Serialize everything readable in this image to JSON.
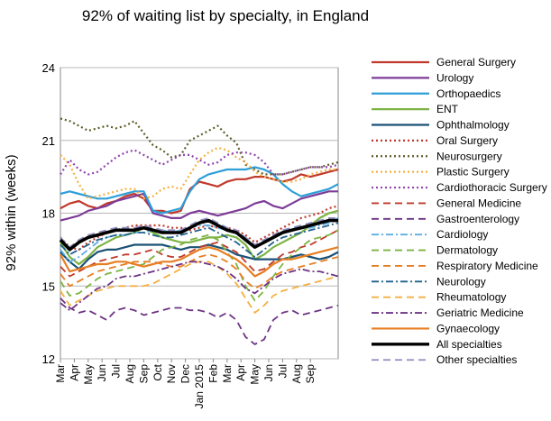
{
  "chart_data": {
    "type": "line",
    "title": "92% of waiting list by specialty, in England",
    "xlabel": "",
    "ylabel": "92% within (weeks)",
    "ylim": [
      12,
      24
    ],
    "yticks": [
      12,
      15,
      18,
      21,
      24
    ],
    "grid": "horizontal",
    "legend": "right",
    "categories": [
      "Mar",
      "Apr",
      "May",
      "Jun",
      "Jul",
      "Aug",
      "Sep",
      "Oct",
      "Nov",
      "Dec",
      "Jan 2015",
      "Feb",
      "Mar",
      "Apr",
      "May",
      "Jun",
      "Jul",
      "Aug",
      "Sep"
    ],
    "x_values": [
      0,
      1,
      2,
      3,
      4,
      5,
      6,
      7,
      8,
      9,
      10,
      11,
      12,
      13,
      14,
      15,
      16,
      17,
      18,
      19,
      20,
      21,
      22,
      23,
      24,
      25,
      26,
      27,
      28,
      29,
      30
    ],
    "x_tick_positions": [
      0,
      1.5,
      3,
      4.5,
      6,
      7.5,
      9,
      10.5,
      12,
      13.5,
      15,
      16.5,
      18,
      19.5,
      21,
      22.5,
      24,
      25.5,
      27,
      28.5,
      30
    ],
    "x_tick_labels": [
      "Mar",
      "Apr",
      "May",
      "Jun",
      "Jul",
      "Aug",
      "Sep",
      "Oct",
      "Nov",
      "Dec",
      "Jan 2015",
      "Feb",
      "Mar",
      "Apr",
      "May",
      "Jun",
      "Jul",
      "Aug",
      "Sep",
      "",
      ""
    ],
    "series": [
      {
        "name": "General Surgery",
        "color": "#c0392b",
        "dash": "solid",
        "width": 2.2,
        "values": [
          18.2,
          18.4,
          18.5,
          18.3,
          18.2,
          18.4,
          18.5,
          18.7,
          18.8,
          18.6,
          18.1,
          18.1,
          18.0,
          18.1,
          19.0,
          19.3,
          19.2,
          19.1,
          19.3,
          19.4,
          19.4,
          19.5,
          19.5,
          19.4,
          19.3,
          19.4,
          19.6,
          19.5,
          19.6,
          19.7,
          19.8
        ]
      },
      {
        "name": "Urology",
        "color": "#7d3c98",
        "dash": "solid",
        "width": 2.2,
        "values": [
          17.7,
          17.8,
          17.9,
          18.1,
          18.2,
          18.3,
          18.5,
          18.6,
          18.7,
          18.8,
          18.0,
          17.9,
          17.8,
          17.8,
          18.0,
          18.1,
          18.0,
          17.9,
          18.0,
          18.1,
          18.2,
          18.4,
          18.5,
          18.3,
          18.2,
          18.4,
          18.6,
          18.7,
          18.8,
          18.9,
          18.9
        ]
      },
      {
        "name": "Orthopaedics",
        "color": "#2e9fd8",
        "dash": "solid",
        "width": 2.2,
        "values": [
          18.8,
          18.9,
          18.8,
          18.7,
          18.6,
          18.6,
          18.7,
          18.8,
          18.9,
          18.9,
          18.1,
          18.0,
          18.1,
          18.2,
          18.9,
          19.4,
          19.6,
          19.7,
          19.8,
          19.8,
          19.8,
          19.9,
          19.8,
          19.6,
          19.2,
          18.9,
          18.7,
          18.8,
          18.9,
          19.0,
          19.2
        ]
      },
      {
        "name": "ENT",
        "color": "#7cb342",
        "dash": "solid",
        "width": 2.2,
        "values": [
          16.8,
          16.2,
          15.9,
          16.2,
          16.6,
          16.8,
          17.0,
          17.1,
          17.2,
          17.4,
          17.2,
          17.0,
          16.9,
          16.8,
          16.8,
          16.9,
          17.0,
          17.0,
          17.1,
          17.0,
          16.7,
          16.1,
          16.3,
          16.6,
          16.8,
          17.0,
          17.2,
          17.5,
          17.8,
          18.0,
          18.1
        ]
      },
      {
        "name": "Ophthalmology",
        "color": "#1a5276",
        "dash": "solid",
        "width": 2.2,
        "values": [
          16.4,
          16.0,
          15.7,
          16.1,
          16.4,
          16.5,
          16.5,
          16.6,
          16.7,
          16.7,
          16.7,
          16.7,
          16.6,
          16.5,
          16.6,
          16.6,
          16.7,
          16.6,
          16.5,
          16.3,
          16.2,
          16.1,
          16.1,
          16.1,
          16.1,
          16.2,
          16.3,
          16.2,
          16.1,
          16.2,
          16.4
        ]
      },
      {
        "name": "Oral Surgery",
        "color": "#c0392b",
        "dash": "dot",
        "width": 2.2,
        "values": [
          17.0,
          16.6,
          16.5,
          16.8,
          17.0,
          17.2,
          17.3,
          17.4,
          17.5,
          17.5,
          17.5,
          17.5,
          17.4,
          17.4,
          17.3,
          17.4,
          17.5,
          17.4,
          17.4,
          17.3,
          17.1,
          16.8,
          17.0,
          17.2,
          17.4,
          17.6,
          17.8,
          17.9,
          18.0,
          18.2,
          18.3
        ]
      },
      {
        "name": "Neurosurgery",
        "color": "#5d5d2a",
        "dash": "dot",
        "width": 2.2,
        "values": [
          21.9,
          21.8,
          21.6,
          21.4,
          21.5,
          21.6,
          21.5,
          21.6,
          21.8,
          21.3,
          20.8,
          20.6,
          20.3,
          20.4,
          21.0,
          21.2,
          21.4,
          21.6,
          21.2,
          20.9,
          20.0,
          19.8,
          19.6,
          19.6,
          19.6,
          19.7,
          19.8,
          19.9,
          19.9,
          20.0,
          20.1
        ]
      },
      {
        "name": "Plastic Surgery",
        "color": "#f5b041",
        "dash": "dot",
        "width": 2.2,
        "values": [
          20.4,
          20.0,
          19.2,
          18.6,
          18.7,
          18.8,
          18.9,
          19.0,
          19.0,
          18.6,
          18.7,
          19.0,
          19.1,
          19.0,
          19.6,
          20.2,
          20.5,
          20.7,
          20.6,
          20.3,
          20.1,
          19.7,
          19.5,
          19.4,
          19.3,
          19.3,
          19.4,
          19.6,
          19.7,
          19.8,
          19.8
        ]
      },
      {
        "name": "Cardiothoracic Surgery",
        "color": "#8e44ad",
        "dash": "dot",
        "width": 2.2,
        "values": [
          19.6,
          20.2,
          19.8,
          19.6,
          19.7,
          20.0,
          20.3,
          20.5,
          20.6,
          20.4,
          20.2,
          20.0,
          20.2,
          20.4,
          20.4,
          20.2,
          20.0,
          20.1,
          20.4,
          20.5,
          20.5,
          20.4,
          20.1,
          19.6,
          19.6,
          19.7,
          19.8,
          19.9,
          19.9,
          19.9,
          20.0
        ]
      },
      {
        "name": "General Medicine",
        "color": "#c0392b",
        "dash": "dash",
        "width": 1.8,
        "values": [
          15.8,
          15.4,
          15.6,
          15.8,
          16.0,
          16.1,
          16.2,
          16.3,
          16.3,
          16.4,
          16.5,
          16.3,
          16.2,
          16.2,
          16.4,
          16.6,
          16.7,
          16.8,
          16.6,
          16.4,
          16.0,
          15.6,
          15.7,
          16.0,
          16.3,
          16.4,
          16.6,
          16.7,
          16.9,
          17.1,
          17.3
        ]
      },
      {
        "name": "Gastroenterology",
        "color": "#6c3483",
        "dash": "dash",
        "width": 1.8,
        "values": [
          14.5,
          14.1,
          13.9,
          14.0,
          13.8,
          13.6,
          14.0,
          14.1,
          14.0,
          13.8,
          13.9,
          14.0,
          14.1,
          14.1,
          14.0,
          14.0,
          13.9,
          13.7,
          13.9,
          13.6,
          12.9,
          12.6,
          12.8,
          13.6,
          13.9,
          14.0,
          13.8,
          13.9,
          14.0,
          14.1,
          14.2
        ]
      },
      {
        "name": "Cardiology",
        "color": "#5dade2",
        "dash": "dashdot",
        "width": 1.8,
        "values": [
          16.5,
          16.0,
          16.2,
          16.5,
          16.8,
          17.0,
          17.1,
          17.1,
          17.2,
          17.2,
          17.3,
          17.3,
          17.2,
          17.3,
          17.4,
          17.5,
          17.5,
          17.4,
          17.3,
          17.2,
          17.0,
          16.6,
          16.8,
          17.0,
          17.2,
          17.3,
          17.4,
          17.4,
          17.5,
          17.6,
          17.8
        ]
      },
      {
        "name": "Dermatology",
        "color": "#7cb342",
        "dash": "dash",
        "width": 1.8,
        "values": [
          15.2,
          14.6,
          14.7,
          15.0,
          15.3,
          15.5,
          15.6,
          15.7,
          15.8,
          15.9,
          16.2,
          16.5,
          16.6,
          16.7,
          16.9,
          17.0,
          17.1,
          16.9,
          16.4,
          15.9,
          15.0,
          14.4,
          14.8,
          15.4,
          15.9,
          16.3,
          16.6,
          16.9,
          17.0,
          17.1,
          17.3
        ]
      },
      {
        "name": "Respiratory Medicine",
        "color": "#e67e22",
        "dash": "dash",
        "width": 1.8,
        "values": [
          15.5,
          15.0,
          15.2,
          15.4,
          15.6,
          15.7,
          15.8,
          15.9,
          16.0,
          16.0,
          16.0,
          15.9,
          15.8,
          15.8,
          16.0,
          16.2,
          16.3,
          16.2,
          16.0,
          15.7,
          15.2,
          14.9,
          15.1,
          15.4,
          15.6,
          15.7,
          15.8,
          15.9,
          16.0,
          16.1,
          16.2
        ]
      },
      {
        "name": "Neurology",
        "color": "#1f618d",
        "dash": "dashdot",
        "width": 1.8,
        "values": [
          16.7,
          16.3,
          16.5,
          16.7,
          16.9,
          17.0,
          17.1,
          17.1,
          17.2,
          17.2,
          17.1,
          17.0,
          17.0,
          17.1,
          17.2,
          17.3,
          17.4,
          17.2,
          17.0,
          16.8,
          16.5,
          16.2,
          16.5,
          16.8,
          17.0,
          17.1,
          17.2,
          17.3,
          17.4,
          17.5,
          17.6
        ]
      },
      {
        "name": "Rheumatology",
        "color": "#f5b041",
        "dash": "dash",
        "width": 1.8,
        "values": [
          14.8,
          14.2,
          14.4,
          14.6,
          14.8,
          14.9,
          15.0,
          15.0,
          15.0,
          15.0,
          15.1,
          15.3,
          15.5,
          15.7,
          15.9,
          16.0,
          16.0,
          15.8,
          15.5,
          15.1,
          14.5,
          13.9,
          14.2,
          14.6,
          14.8,
          14.9,
          15.0,
          15.1,
          15.2,
          15.3,
          15.4
        ]
      },
      {
        "name": "Geriatric Medicine",
        "color": "#6c3483",
        "dash": "dashdot",
        "width": 1.8,
        "values": [
          14.3,
          14.0,
          14.3,
          14.6,
          14.9,
          15.0,
          15.3,
          15.4,
          15.4,
          15.5,
          15.6,
          15.7,
          15.8,
          15.9,
          16.0,
          16.0,
          15.9,
          15.8,
          15.6,
          15.3,
          14.9,
          14.7,
          15.0,
          15.3,
          15.5,
          15.6,
          15.7,
          15.6,
          15.6,
          15.5,
          15.4
        ]
      },
      {
        "name": "Gynaecology",
        "color": "#e67e22",
        "dash": "solid",
        "width": 2.2,
        "values": [
          16.3,
          15.6,
          15.7,
          15.8,
          15.9,
          15.9,
          16.0,
          16.0,
          15.9,
          15.8,
          15.9,
          16.0,
          16.0,
          16.1,
          16.3,
          16.5,
          16.6,
          16.5,
          16.3,
          16.1,
          15.8,
          15.4,
          15.6,
          15.9,
          16.1,
          16.1,
          16.2,
          16.3,
          16.4,
          16.5,
          16.6
        ]
      },
      {
        "name": "All specialties",
        "color": "#000000",
        "dash": "solid",
        "width": 3.6,
        "values": [
          16.9,
          16.5,
          16.8,
          17.0,
          17.1,
          17.2,
          17.3,
          17.3,
          17.3,
          17.4,
          17.3,
          17.2,
          17.2,
          17.2,
          17.4,
          17.6,
          17.7,
          17.5,
          17.3,
          17.2,
          16.9,
          16.6,
          16.8,
          17.0,
          17.2,
          17.3,
          17.4,
          17.5,
          17.6,
          17.7,
          17.7
        ]
      },
      {
        "name": "Other specialties",
        "color": "#8e8ec0",
        "dash": "dash",
        "width": 1.8,
        "values": [
          17.0,
          16.6,
          16.9,
          17.1,
          17.2,
          17.3,
          17.4,
          17.4,
          17.4,
          17.5,
          17.4,
          17.3,
          17.3,
          17.3,
          17.5,
          17.7,
          17.8,
          17.6,
          17.4,
          17.3,
          17.0,
          16.7,
          16.9,
          17.1,
          17.3,
          17.4,
          17.5,
          17.6,
          17.7,
          17.8,
          17.8
        ]
      }
    ]
  }
}
